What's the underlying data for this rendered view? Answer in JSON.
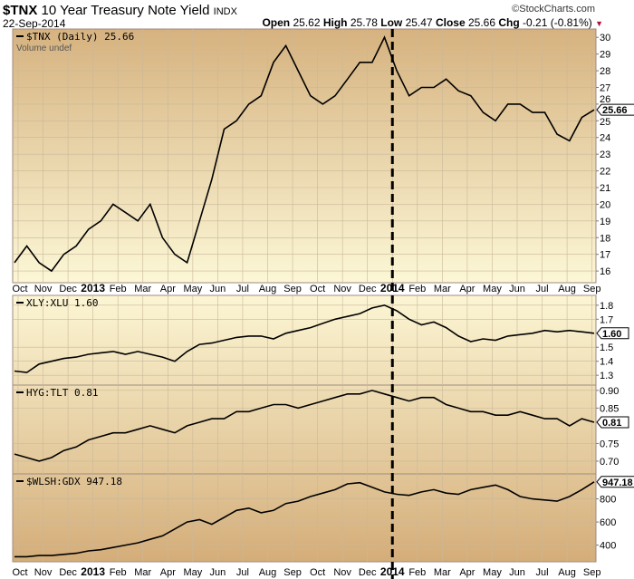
{
  "header": {
    "symbol": "$TNX",
    "name": "10 Year Treasury Note Yield",
    "exchange": "INDX",
    "date": "22-Sep-2014",
    "brand": "©StockCharts.com",
    "open_label": "Open",
    "open": "25.62",
    "high_label": "High",
    "high": "25.78",
    "low_label": "Low",
    "low": "25.47",
    "close_label": "Close",
    "close": "25.66",
    "chg_label": "Chg",
    "chg": "-0.21 (-0.81%)"
  },
  "chart_data": [
    {
      "type": "line",
      "legend": "$TNX (Daily) 25.66",
      "sublegend": "Volume undef",
      "last": "25.66",
      "ylim": [
        15.3,
        30.5
      ],
      "yticks": [
        16,
        17,
        18,
        19,
        20,
        21,
        22,
        23,
        24,
        25,
        26,
        27,
        28,
        29,
        30
      ],
      "values": [
        16.5,
        17.5,
        16.5,
        16.0,
        17.0,
        17.5,
        18.5,
        19.0,
        20.0,
        19.5,
        19.0,
        20.0,
        18.0,
        17.0,
        16.5,
        19.0,
        21.5,
        24.5,
        25.0,
        26.0,
        26.5,
        28.5,
        29.5,
        28.0,
        26.5,
        26.0,
        26.5,
        27.5,
        28.5,
        28.5,
        30.0,
        28.0,
        26.5,
        27.0,
        27.0,
        27.5,
        26.8,
        26.5,
        25.5,
        25.0,
        26.0,
        26.0,
        25.5,
        25.5,
        24.2,
        23.8,
        25.2,
        25.66
      ]
    },
    {
      "type": "line",
      "legend": "XLY:XLU 1.60",
      "last": "1.60",
      "ylim": [
        1.23,
        1.87
      ],
      "yticks": [
        1.3,
        1.4,
        1.5,
        1.7,
        1.8
      ],
      "ytick_labels": [
        "1.3",
        "1.4",
        "1.5",
        "1.7",
        "1.8"
      ],
      "values": [
        1.33,
        1.32,
        1.38,
        1.4,
        1.42,
        1.43,
        1.45,
        1.46,
        1.47,
        1.45,
        1.47,
        1.45,
        1.43,
        1.4,
        1.47,
        1.52,
        1.53,
        1.55,
        1.57,
        1.58,
        1.58,
        1.56,
        1.6,
        1.62,
        1.64,
        1.67,
        1.7,
        1.72,
        1.74,
        1.78,
        1.8,
        1.76,
        1.7,
        1.66,
        1.68,
        1.64,
        1.58,
        1.54,
        1.56,
        1.55,
        1.58,
        1.59,
        1.6,
        1.62,
        1.61,
        1.62,
        1.61,
        1.6
      ]
    },
    {
      "type": "line",
      "legend": "HYG:TLT 0.81",
      "last": "0.81",
      "ylim": [
        0.664,
        0.915
      ],
      "yticks": [
        0.7,
        0.75,
        0.85,
        0.9
      ],
      "ytick_labels": [
        "0.70",
        "0.75",
        "0.85",
        "0.90"
      ],
      "values": [
        0.72,
        0.71,
        0.7,
        0.71,
        0.73,
        0.74,
        0.76,
        0.77,
        0.78,
        0.78,
        0.79,
        0.8,
        0.79,
        0.78,
        0.8,
        0.81,
        0.82,
        0.82,
        0.84,
        0.84,
        0.85,
        0.86,
        0.86,
        0.85,
        0.86,
        0.87,
        0.88,
        0.89,
        0.89,
        0.9,
        0.89,
        0.88,
        0.87,
        0.88,
        0.88,
        0.86,
        0.85,
        0.84,
        0.84,
        0.83,
        0.83,
        0.84,
        0.83,
        0.82,
        0.82,
        0.8,
        0.82,
        0.81
      ]
    },
    {
      "type": "line",
      "legend": "$WLSH:GDX 947.18",
      "last": "947.18",
      "ylim": [
        256,
        1016
      ],
      "yticks": [
        400,
        600,
        800
      ],
      "ytick_labels": [
        "400",
        "600",
        "800"
      ],
      "values": [
        300,
        300,
        310,
        310,
        320,
        330,
        350,
        360,
        380,
        400,
        420,
        450,
        480,
        540,
        600,
        620,
        580,
        640,
        700,
        720,
        680,
        700,
        760,
        780,
        820,
        850,
        880,
        930,
        940,
        900,
        860,
        840,
        830,
        860,
        880,
        850,
        840,
        880,
        900,
        920,
        880,
        820,
        800,
        790,
        780,
        820,
        880,
        947.18
      ]
    }
  ],
  "xaxis": {
    "labels": [
      "Oct",
      "Nov",
      "Dec",
      "2013",
      "Feb",
      "Mar",
      "Apr",
      "May",
      "Jun",
      "Jul",
      "Aug",
      "Sep",
      "Oct",
      "Nov",
      "Dec",
      "2014",
      "Feb",
      "Mar",
      "Apr",
      "May",
      "Jun",
      "Jul",
      "Aug",
      "Sep"
    ],
    "marker": "2014"
  }
}
